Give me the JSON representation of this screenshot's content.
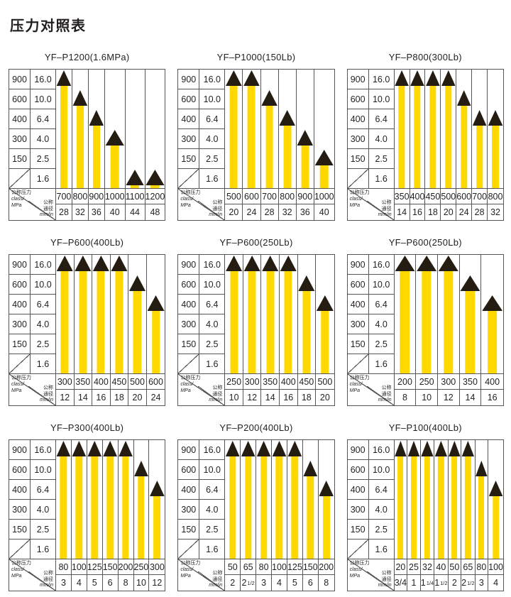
{
  "page": {
    "title": "压力对照表"
  },
  "colors": {
    "bar": "#FFD800",
    "triangle": "#251C12",
    "grid": "#55565a",
    "text": "#231f20",
    "background": "#ffffff"
  },
  "axis": {
    "class_column": [
      "900",
      "600",
      "400",
      "300",
      "150",
      ""
    ],
    "mpa_column": [
      "16.0",
      "10.0",
      "6.4",
      "4.0",
      "2.5",
      "1.6"
    ]
  },
  "corner": {
    "pressure_line1": "公称压力",
    "pressure_line2": "class/",
    "pressure_line3": "MPa",
    "diameter_line1": "公称",
    "diameter_line2": "通径",
    "diameter_line3": "mm/in"
  },
  "chart_data": [
    {
      "type": "bar",
      "title": "YF–P1200(1.6MPa)",
      "ylabel": "公称压力 class/MPa",
      "xlabel": "公称通径 mm/in",
      "y_ticks": [
        16.0,
        10.0,
        6.4,
        4.0,
        2.5,
        1.6
      ],
      "categories_mm": [
        "700",
        "800",
        "900",
        "1000",
        "1100",
        "1200"
      ],
      "categories_inch": [
        "28",
        "32",
        "36",
        "40",
        "44",
        "48"
      ],
      "values_mpa": [
        16.0,
        10.0,
        6.4,
        4.0,
        1.6,
        1.6
      ]
    },
    {
      "type": "bar",
      "title": "YF–P1000(150Lb)",
      "ylabel": "公称压力 class/MPa",
      "xlabel": "公称通径 mm/in",
      "y_ticks": [
        16.0,
        10.0,
        6.4,
        4.0,
        2.5,
        1.6
      ],
      "categories_mm": [
        "500",
        "600",
        "700",
        "800",
        "900",
        "1000"
      ],
      "categories_inch": [
        "20",
        "24",
        "28",
        "32",
        "36",
        "40"
      ],
      "values_mpa": [
        16.0,
        16.0,
        10.0,
        6.4,
        4.0,
        2.5
      ]
    },
    {
      "type": "bar",
      "title": "YF–P800(300Lb)",
      "ylabel": "公称压力 class/MPa",
      "xlabel": "公称通径 mm/in",
      "y_ticks": [
        16.0,
        10.0,
        6.4,
        4.0,
        2.5,
        1.6
      ],
      "categories_mm": [
        "350",
        "400",
        "450",
        "500",
        "600",
        "700",
        "800"
      ],
      "categories_inch": [
        "14",
        "16",
        "18",
        "20",
        "24",
        "28",
        "32"
      ],
      "values_mpa": [
        16.0,
        16.0,
        16.0,
        16.0,
        10.0,
        6.4,
        6.4
      ]
    },
    {
      "type": "bar",
      "title": "YF–P600(400Lb)",
      "ylabel": "公称压力 class/MPa",
      "xlabel": "公称通径 mm/in",
      "y_ticks": [
        16.0,
        10.0,
        6.4,
        4.0,
        2.5,
        1.6
      ],
      "categories_mm": [
        "300",
        "350",
        "400",
        "450",
        "500",
        "600"
      ],
      "categories_inch": [
        "12",
        "14",
        "16",
        "18",
        "20",
        "24"
      ],
      "values_mpa": [
        16.0,
        16.0,
        16.0,
        16.0,
        10.0,
        6.4
      ]
    },
    {
      "type": "bar",
      "title": "YF–P600(250Lb)",
      "ylabel": "公称压力 class/MPa",
      "xlabel": "公称通径 mm/in",
      "y_ticks": [
        16.0,
        10.0,
        6.4,
        4.0,
        2.5,
        1.6
      ],
      "categories_mm": [
        "250",
        "300",
        "350",
        "400",
        "450",
        "500"
      ],
      "categories_inch": [
        "10",
        "12",
        "14",
        "16",
        "18",
        "20"
      ],
      "values_mpa": [
        16.0,
        16.0,
        16.0,
        16.0,
        10.0,
        6.4
      ]
    },
    {
      "type": "bar",
      "title": "YF–P600(250Lb)",
      "ylabel": "公称压力 class/MPa",
      "xlabel": "公称通径 mm/in",
      "y_ticks": [
        16.0,
        10.0,
        6.4,
        4.0,
        2.5,
        1.6
      ],
      "categories_mm": [
        "200",
        "250",
        "300",
        "350",
        "400"
      ],
      "categories_inch": [
        "8",
        "10",
        "12",
        "14",
        "16"
      ],
      "values_mpa": [
        16.0,
        16.0,
        16.0,
        10.0,
        6.4
      ]
    },
    {
      "type": "bar",
      "title": "YF–P300(400Lb)",
      "ylabel": "公称压力 class/MPa",
      "xlabel": "公称通径 mm/in",
      "y_ticks": [
        16.0,
        10.0,
        6.4,
        4.0,
        2.5,
        1.6
      ],
      "categories_mm": [
        "80",
        "100",
        "125",
        "150",
        "200",
        "250",
        "300"
      ],
      "categories_inch": [
        "3",
        "4",
        "5",
        "6",
        "8",
        "10",
        "12"
      ],
      "values_mpa": [
        16.0,
        16.0,
        16.0,
        16.0,
        16.0,
        10.0,
        6.4
      ]
    },
    {
      "type": "bar",
      "title": "YF–P200(400Lb)",
      "ylabel": "公称压力 class/MPa",
      "xlabel": "公称通径 mm/in",
      "y_ticks": [
        16.0,
        10.0,
        6.4,
        4.0,
        2.5,
        1.6
      ],
      "categories_mm": [
        "50",
        "65",
        "80",
        "100",
        "125",
        "150",
        "200"
      ],
      "categories_inch": [
        "2",
        "2 1/2",
        "3",
        "4",
        "5",
        "6",
        "8"
      ],
      "values_mpa": [
        16.0,
        16.0,
        16.0,
        16.0,
        16.0,
        10.0,
        6.4
      ]
    },
    {
      "type": "bar",
      "title": "YF–P100(400Lb)",
      "ylabel": "公称压力 class/MPa",
      "xlabel": "公称通径 mm/in",
      "y_ticks": [
        16.0,
        10.0,
        6.4,
        4.0,
        2.5,
        1.6
      ],
      "categories_mm": [
        "20",
        "25",
        "32",
        "40",
        "50",
        "65",
        "80",
        "100"
      ],
      "categories_inch": [
        "3/4",
        "1",
        "1 1/4",
        "1 1/2",
        "2",
        "2 1/2",
        "3",
        "4"
      ],
      "values_mpa": [
        16.0,
        16.0,
        16.0,
        16.0,
        16.0,
        16.0,
        10.0,
        6.4
      ]
    }
  ]
}
